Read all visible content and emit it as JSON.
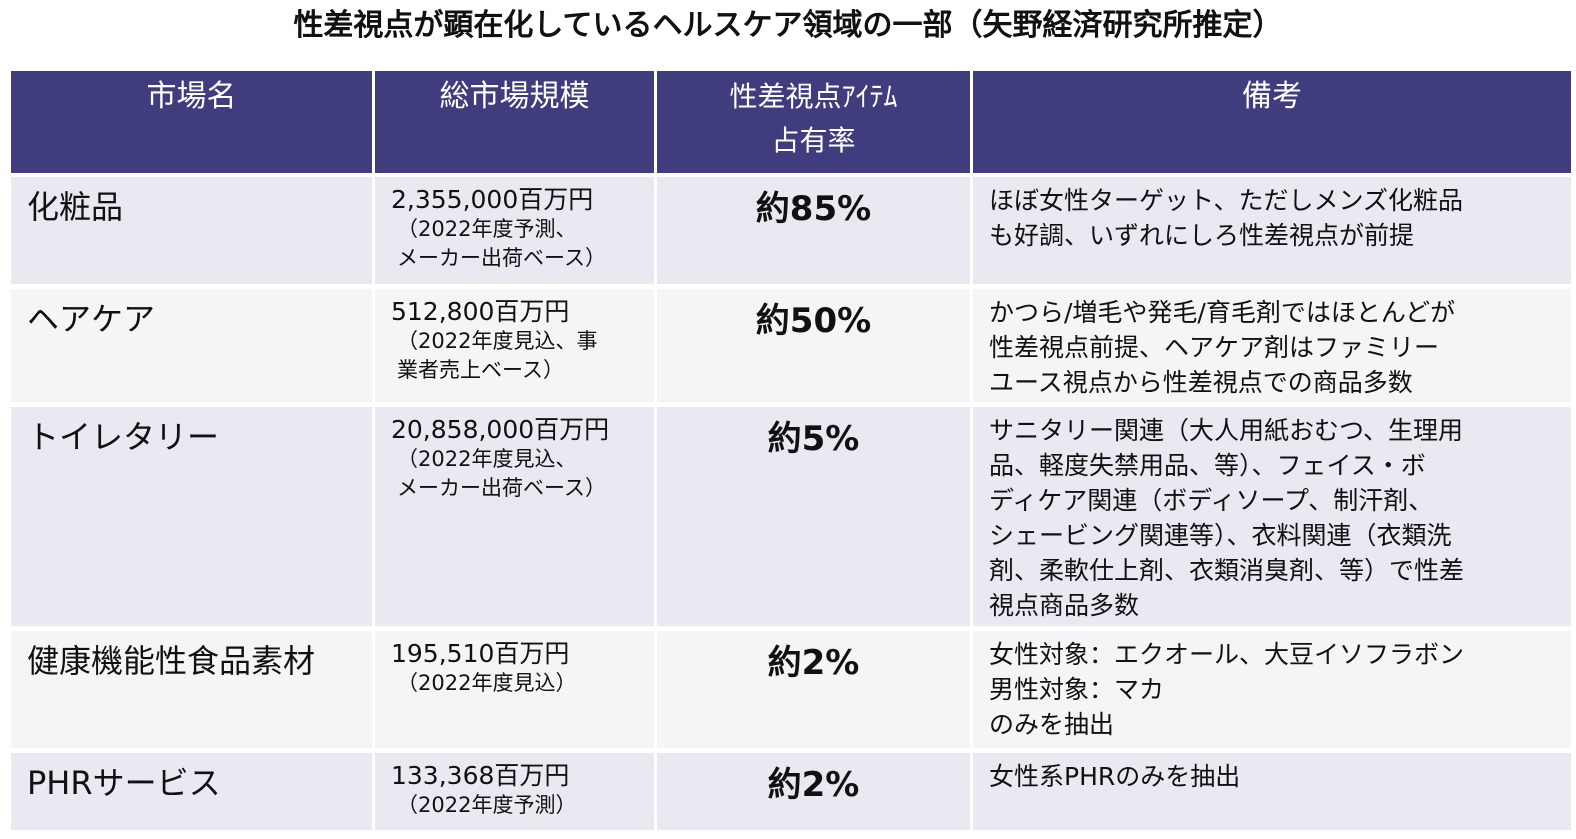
{
  "title": "性差視点が顕在化しているヘルスケア領域の一部（矢野経済研究所推定）",
  "header": {
    "market": "市場名",
    "size": "総市場規模",
    "share_line1": "性差視点ｱｲﾃﾑ",
    "share_line2": "占有率",
    "note": "備考"
  },
  "rows": [
    {
      "market": "化粧品",
      "size": "2,355,000百万円",
      "size_note": "（2022年度予測、\nメーカー出荷ベース）",
      "share": "約85%",
      "note": "ほぼ女性ターゲット、ただしメンズ化粧品\nも好調、いずれにしろ性差視点が前提"
    },
    {
      "market": "ヘアケア",
      "size": "512,800百万円",
      "size_note": "（2022年度見込、事\n業者売上ベース）",
      "share": "約50%",
      "note": "かつら/増毛や発毛/育毛剤ではほとんどが\n性差視点前提、ヘアケア剤はファミリー\nユース視点から性差視点での商品多数"
    },
    {
      "market": "トイレタリー",
      "size": "20,858,000百万円",
      "size_note": "（2022年度見込、\nメーカー出荷ベース）",
      "share": "約5%",
      "note": "サニタリー関連（大人用紙おむつ、生理用\n品、軽度失禁用品、等）、フェイス・ボ\nディケア関連（ボディソープ、制汗剤、\nシェービング関連等）、衣料関連（衣類洗\n剤、柔軟仕上剤、衣類消臭剤、等）で性差\n視点商品多数"
    },
    {
      "market": "健康機能性食品素材",
      "size": "195,510百万円",
      "size_note": "（2022年度見込）",
      "share": "約2%",
      "note": "女性対象：エクオール、大豆イソフラボン\n男性対象：マカ\nのみを抽出"
    },
    {
      "market": "PHRサービス",
      "size": "133,368百万円",
      "size_note": "（2022年度予測）",
      "share": "約2%",
      "note": "女性系PHRのみを抽出"
    }
  ]
}
